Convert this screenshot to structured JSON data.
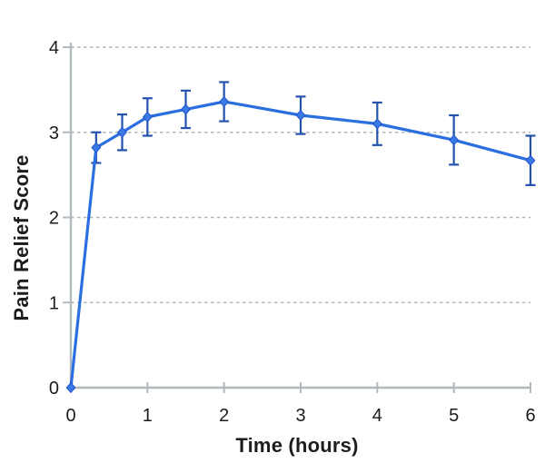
{
  "page": {
    "background_color": "#ffffff"
  },
  "chart_data": {
    "type": "line",
    "title": "",
    "xlabel": "Time (hours)",
    "ylabel": "Pain Relief Score",
    "x": [
      0,
      0.33,
      0.67,
      1,
      1.5,
      2,
      3,
      4,
      5,
      6
    ],
    "series": [
      {
        "name": "Pain relief score",
        "values": [
          0,
          2.82,
          3.0,
          3.18,
          3.27,
          3.36,
          3.2,
          3.1,
          2.91,
          2.67
        ],
        "errors": [
          0,
          0.18,
          0.21,
          0.22,
          0.22,
          0.23,
          0.22,
          0.25,
          0.29,
          0.29
        ],
        "line_color": "#2a6ee0",
        "marker_fill": "#3a79e6",
        "marker_edge": "#1f55c8",
        "error_bar_color": "#2452ac",
        "marker": "diamond",
        "error_bars": true
      }
    ],
    "xlim": [
      0,
      6
    ],
    "ylim": [
      0,
      4
    ],
    "xticks": [
      "0",
      "1",
      "2",
      "3",
      "4",
      "5",
      "6"
    ],
    "yticks": [
      "0",
      "1",
      "2",
      "3",
      "4"
    ],
    "grid": "horizontal-dashed",
    "grid_color": "#aeb7bd",
    "axis_color": "#b2b9bd",
    "tick_label_color": "#1b1b1b",
    "legend": "none"
  }
}
